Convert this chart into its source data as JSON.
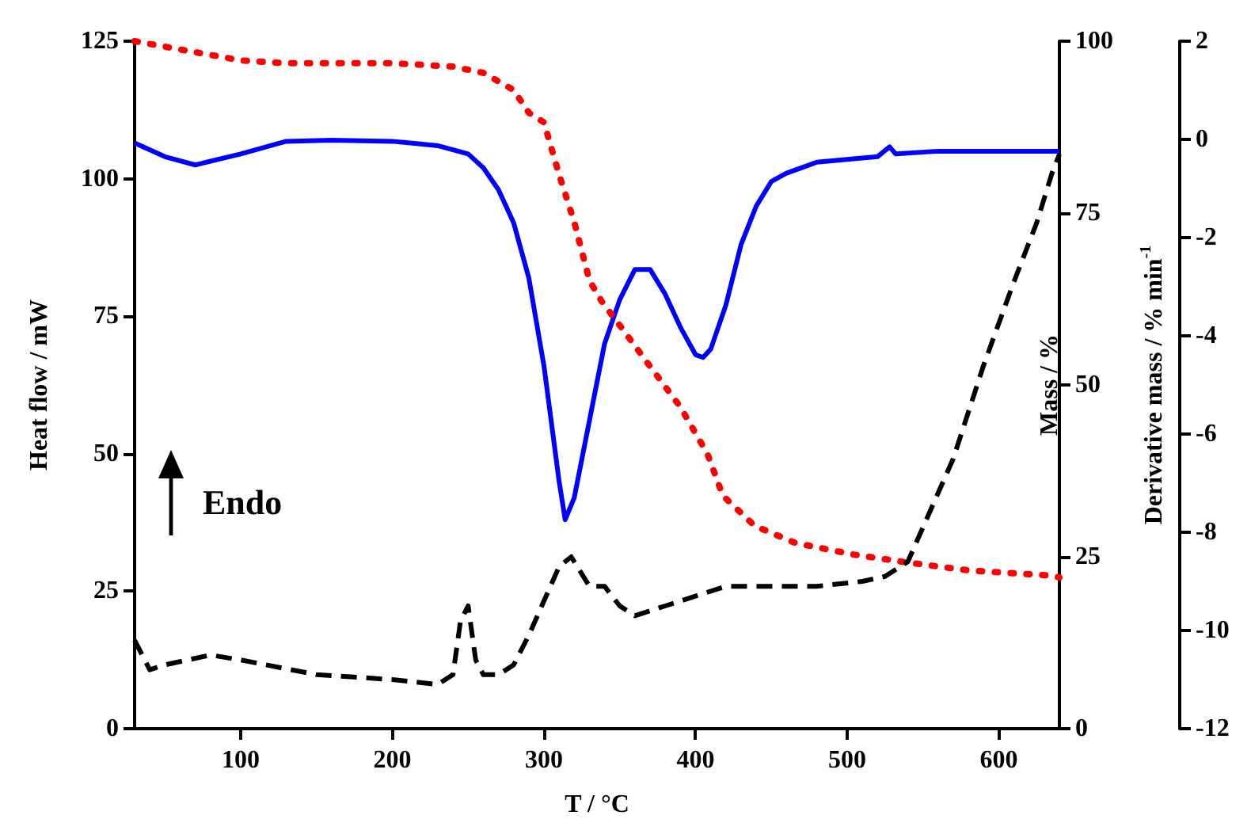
{
  "chart_data": {
    "type": "line",
    "xlabel": "T / °C",
    "ylabel": "Heat flow / mW",
    "y2label": "Mass / %",
    "y3label": "Derivative mass / % min$^{-1}$",
    "xlim": [
      30,
      640
    ],
    "xticks": [
      100,
      200,
      300,
      400,
      500,
      600
    ],
    "ylim": [
      0,
      125
    ],
    "yticks": [
      0,
      25,
      50,
      75,
      100,
      125
    ],
    "y2lim": [
      0,
      100
    ],
    "y2ticks": [
      0,
      25,
      50,
      75,
      100
    ],
    "y3lim": [
      -12,
      2
    ],
    "y3ticks": [
      -12,
      -10,
      -8,
      -6,
      -4,
      -2,
      0,
      2
    ],
    "grid": false,
    "marker": "none",
    "annotations": [
      "Endo"
    ],
    "series": [
      {
        "color": "#0000ff",
        "line_style": "solid",
        "x": [
          30,
          50,
          70,
          100,
          130,
          160,
          200,
          230,
          250,
          260,
          270,
          280,
          290,
          300,
          310,
          314,
          320,
          330,
          340,
          350,
          360,
          370,
          380,
          390,
          400,
          405,
          410,
          420,
          430,
          440,
          450,
          460,
          480,
          500,
          520,
          528,
          532,
          560,
          600,
          640
        ],
        "values": [
          106.5,
          104,
          102.5,
          104.5,
          106.8,
          107,
          106.8,
          106,
          104.5,
          102,
          98,
          92,
          82,
          66,
          45,
          38,
          42,
          56,
          70,
          78,
          83.5,
          83.5,
          79,
          73,
          68,
          67.5,
          69,
          77,
          88,
          95,
          99.5,
          101,
          103,
          103.5,
          104,
          105.8,
          104.5,
          105,
          105,
          105
        ]
      },
      {
        "color": "#ff0000",
        "line_style": "dotted",
        "axis": "y2",
        "x": [
          30,
          60,
          100,
          130,
          200,
          240,
          260,
          280,
          290,
          300,
          310,
          320,
          330,
          338,
          359,
          369,
          390,
          408,
          418,
          439,
          466,
          505,
          539,
          581,
          633,
          640
        ],
        "values": [
          100,
          98.8,
          97.2,
          96.8,
          96.8,
          96.3,
          95.4,
          92.9,
          89.6,
          88.2,
          80.6,
          73.7,
          65.2,
          62.2,
          56,
          53,
          46.8,
          39.9,
          33.9,
          29.5,
          27,
          25.3,
          24.2,
          23,
          22.3,
          22
        ]
      },
      {
        "color": "#000000",
        "line_style": "dashed",
        "axis": "y3",
        "x": [
          30,
          40,
          50,
          80,
          100,
          150,
          200,
          230,
          240,
          245,
          250,
          255,
          260,
          270,
          280,
          290,
          300,
          310,
          318,
          330,
          340,
          350,
          360,
          380,
          400,
          420,
          450,
          480,
          510,
          525,
          540,
          550,
          570,
          590,
          610,
          625,
          635,
          640
        ],
        "values": [
          -10.2,
          -10.8,
          -10.7,
          -10.5,
          -10.6,
          -10.9,
          -11,
          -11.1,
          -10.9,
          -9.8,
          -9.5,
          -10.6,
          -10.9,
          -10.9,
          -10.7,
          -10.1,
          -9.4,
          -8.7,
          -8.5,
          -9.1,
          -9.1,
          -9.5,
          -9.7,
          -9.5,
          -9.3,
          -9.1,
          -9.1,
          -9.1,
          -9,
          -8.9,
          -8.6,
          -7.9,
          -6.5,
          -4.6,
          -2.9,
          -1.7,
          -0.7,
          -0.3
        ]
      }
    ]
  }
}
